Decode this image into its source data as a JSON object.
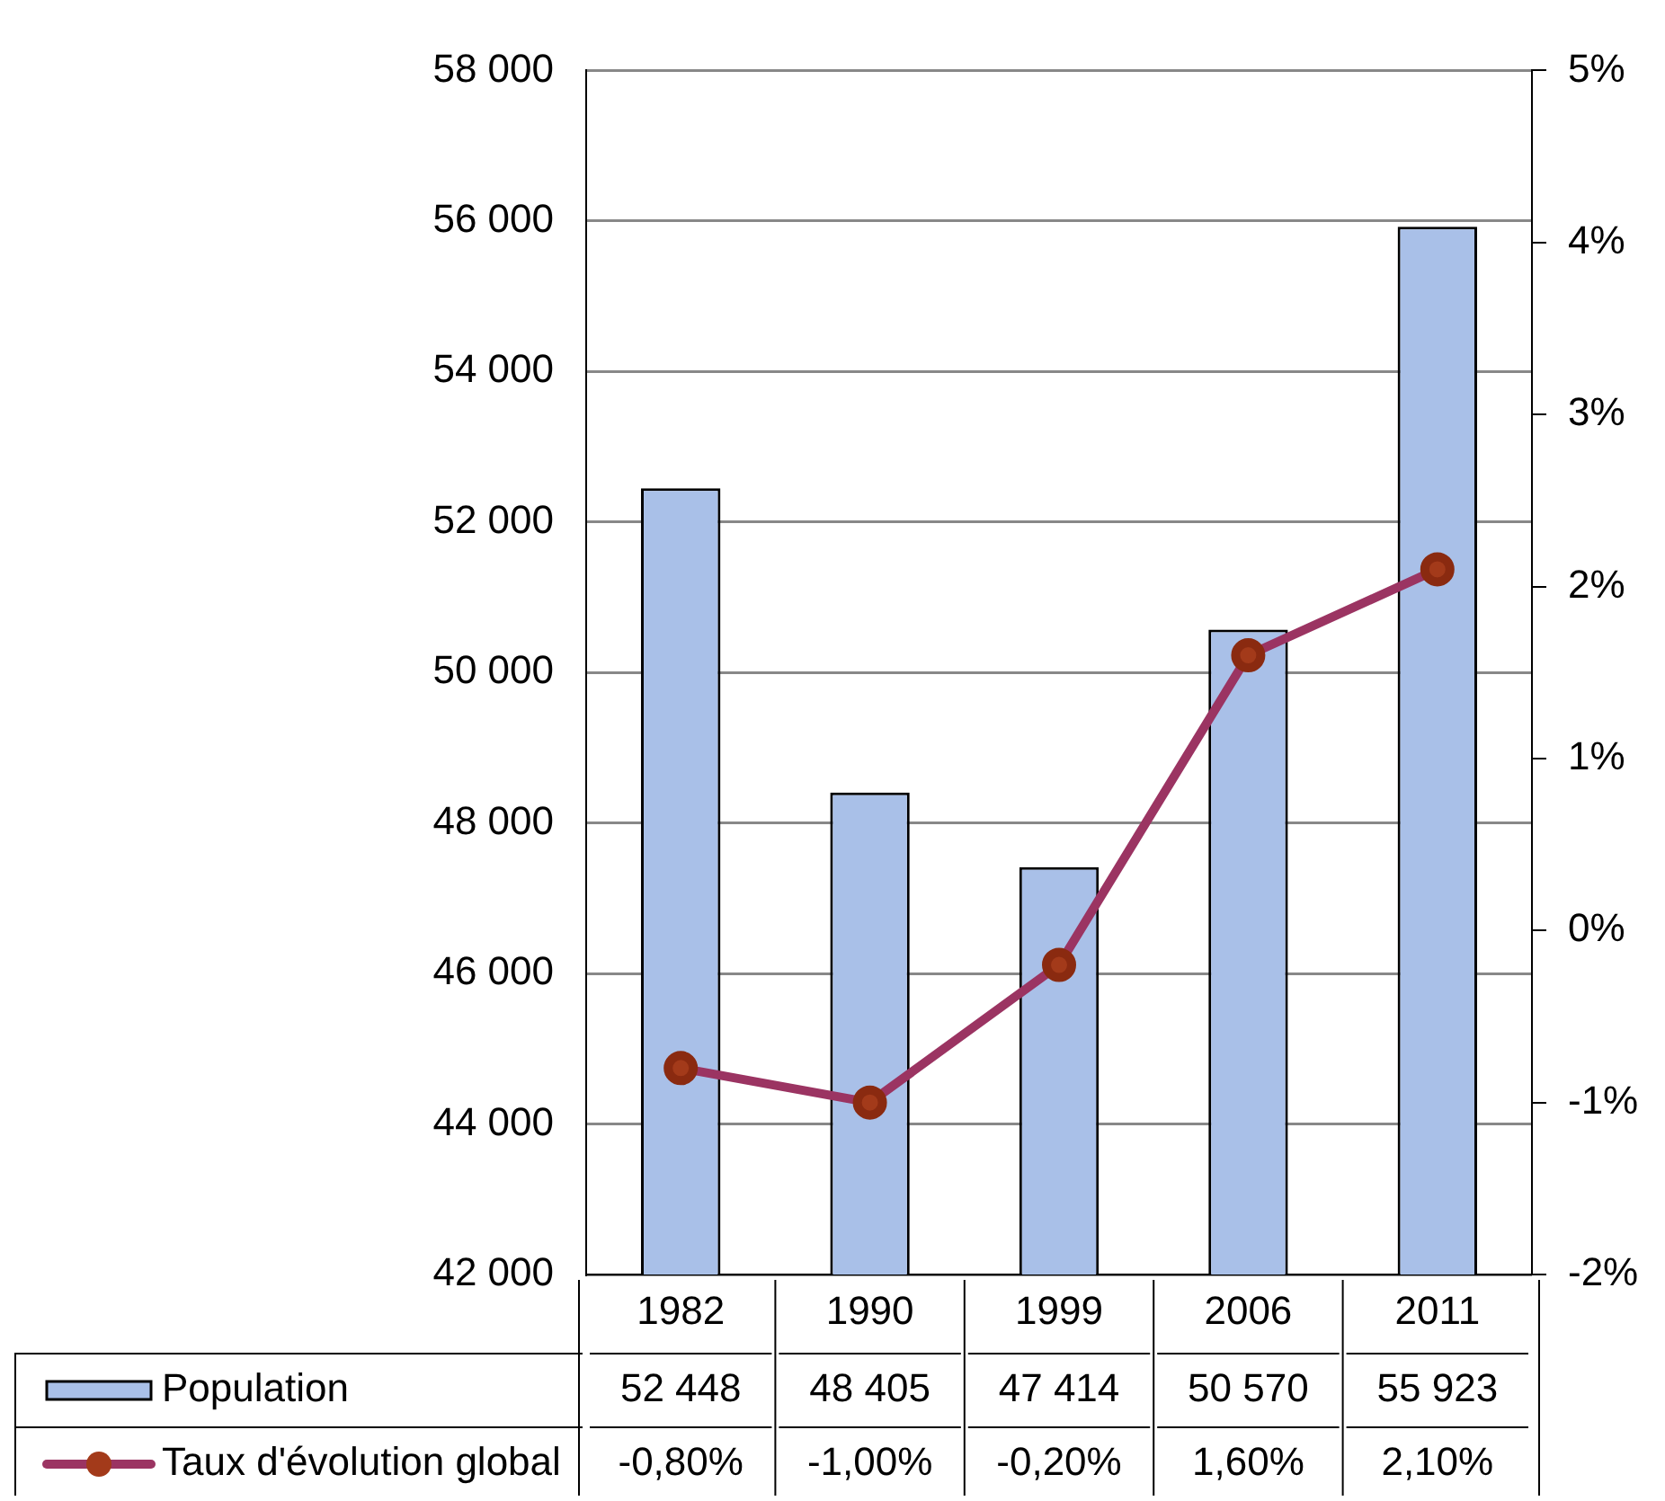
{
  "chart_data": {
    "type": "bar",
    "categories": [
      "1982",
      "1990",
      "1999",
      "2006",
      "2011"
    ],
    "series": [
      {
        "name": "Population",
        "color": "#a9c0e8",
        "values": [
          52448,
          48405,
          47414,
          50570,
          55923
        ],
        "value_labels": [
          "52 448",
          "48 405",
          "47 414",
          "50 570",
          "55 923"
        ]
      },
      {
        "name": "Taux d'évolution global",
        "type": "line",
        "axis": "y2",
        "color": "#9b3462",
        "values": [
          -0.8,
          -1.0,
          -0.2,
          1.6,
          2.1
        ],
        "value_labels": [
          "-0,80%",
          "-1,00%",
          "-0,20%",
          "1,60%",
          "2,10%"
        ],
        "marker": "circle",
        "line_style": "solid"
      }
    ],
    "ylim": [
      42000,
      58000
    ],
    "yticks": [
      {
        "value": 42000,
        "label": "42 000"
      },
      {
        "value": 44000,
        "label": "44 000"
      },
      {
        "value": 46000,
        "label": "46 000"
      },
      {
        "value": 48000,
        "label": "48 000"
      },
      {
        "value": 50000,
        "label": "50 000"
      },
      {
        "value": 52000,
        "label": "52 000"
      },
      {
        "value": 54000,
        "label": "54 000"
      },
      {
        "value": 56000,
        "label": "56 000"
      },
      {
        "value": 58000,
        "label": "58 000"
      }
    ],
    "y2lim": [
      -2,
      5
    ],
    "y2ticks": [
      {
        "value": -2,
        "label": "-2%"
      },
      {
        "value": -1,
        "label": "-1%"
      },
      {
        "value": 0,
        "label": "0%"
      },
      {
        "value": 1,
        "label": "1%"
      },
      {
        "value": 2,
        "label": "2%"
      },
      {
        "value": 3,
        "label": "3%"
      },
      {
        "value": 4,
        "label": "4%"
      },
      {
        "value": 5,
        "label": "5%"
      }
    ],
    "grid": "y",
    "legend": "bottom"
  }
}
